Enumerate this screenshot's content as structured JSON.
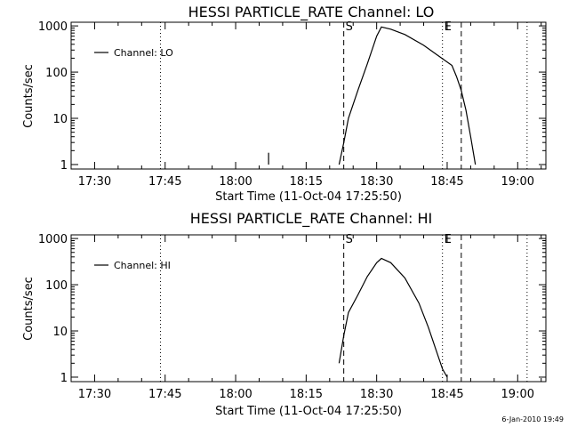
{
  "chart_data": [
    {
      "type": "line",
      "title": "HESSI PARTICLE_RATE Channel: LO",
      "xlabel": "Start Time (11-Oct-04 17:25:50)",
      "ylabel": "Counts/sec",
      "y_scale": "log",
      "ylim": [
        0.8,
        1200
      ],
      "xlim": [
        "17:25",
        "19:06"
      ],
      "x_tick_labels": [
        "17:30",
        "17:45",
        "18:00",
        "18:15",
        "18:30",
        "18:45",
        "19:00"
      ],
      "y_tick_labels": [
        "1",
        "10",
        "100",
        "1000"
      ],
      "legend": "top-left",
      "grid": false,
      "series": [
        {
          "name": "Channel: LO",
          "x": [
            "18:07",
            "18:07",
            "18:22",
            "18:23",
            "18:24",
            "18:26",
            "18:28",
            "18:30",
            "18:31",
            "18:33",
            "18:36",
            "18:40",
            "18:43",
            "18:46",
            "18:47",
            "18:48",
            "18:49",
            "18:50",
            "18:51"
          ],
          "y": [
            1,
            1.8,
            1,
            3,
            10,
            40,
            150,
            600,
            950,
            850,
            650,
            380,
            230,
            140,
            80,
            40,
            15,
            4,
            1
          ],
          "segments": [
            [
              0,
              2
            ],
            [
              2,
              19
            ]
          ]
        }
      ],
      "vlines": [
        {
          "x": "17:44",
          "style": "dotted",
          "label": ""
        },
        {
          "x": "18:23",
          "style": "dashed",
          "label": "S"
        },
        {
          "x": "18:44",
          "style": "dotted",
          "label": "E"
        },
        {
          "x": "18:48",
          "style": "dashed",
          "label": ""
        },
        {
          "x": "19:02",
          "style": "dotted",
          "label": ""
        }
      ]
    },
    {
      "type": "line",
      "title": "HESSI PARTICLE_RATE Channel: HI",
      "xlabel": "Start Time (11-Oct-04 17:25:50)",
      "ylabel": "Counts/sec",
      "y_scale": "log",
      "ylim": [
        0.8,
        1200
      ],
      "xlim": [
        "17:25",
        "19:06"
      ],
      "x_tick_labels": [
        "17:30",
        "17:45",
        "18:00",
        "18:15",
        "18:30",
        "18:45",
        "19:00"
      ],
      "y_tick_labels": [
        "1",
        "10",
        "100",
        "1000"
      ],
      "legend": "top-left",
      "grid": false,
      "series": [
        {
          "name": "Channel: HI",
          "x": [
            "18:22",
            "18:23",
            "18:24",
            "18:26",
            "18:28",
            "18:30",
            "18:31",
            "18:33",
            "18:36",
            "18:39",
            "18:41",
            "18:43",
            "18:44",
            "18:45"
          ],
          "y": [
            2,
            8,
            25,
            60,
            150,
            300,
            370,
            300,
            140,
            40,
            12,
            3,
            1.5,
            1
          ],
          "segments": [
            [
              0,
              14
            ]
          ]
        }
      ],
      "vlines": [
        {
          "x": "17:44",
          "style": "dotted",
          "label": ""
        },
        {
          "x": "18:23",
          "style": "dashed",
          "label": "S"
        },
        {
          "x": "18:44",
          "style": "dotted",
          "label": "E"
        },
        {
          "x": "18:48",
          "style": "dashed",
          "label": ""
        },
        {
          "x": "19:02",
          "style": "dotted",
          "label": ""
        }
      ]
    }
  ],
  "timestamp": "6-Jan-2010 19:49"
}
